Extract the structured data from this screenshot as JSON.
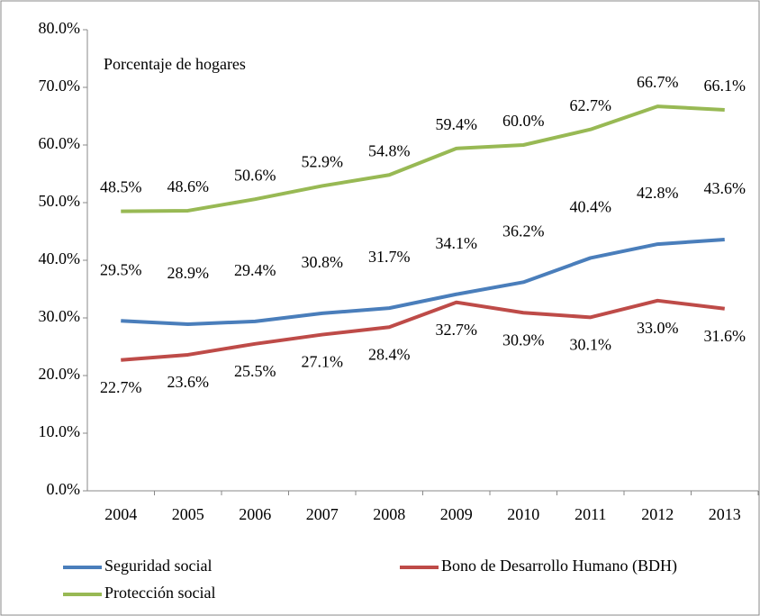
{
  "chart_data": {
    "type": "line",
    "annotations": [
      "Porcentaje de hogares"
    ],
    "categories": [
      "2004",
      "2005",
      "2006",
      "2007",
      "2008",
      "2009",
      "2010",
      "2011",
      "2012",
      "2013"
    ],
    "series": [
      {
        "name": "Seguridad social",
        "color": "#4a7ebb",
        "values": [
          29.5,
          28.9,
          29.4,
          30.8,
          31.7,
          34.1,
          36.2,
          40.4,
          42.8,
          43.6
        ],
        "value_labels": [
          "29.5%",
          "28.9%",
          "29.4%",
          "30.8%",
          "31.7%",
          "34.1%",
          "36.2%",
          "40.4%",
          "42.8%",
          "43.6%"
        ]
      },
      {
        "name": "Bono de Desarrollo  Humano (BDH)",
        "color": "#be4b48",
        "values": [
          22.7,
          23.6,
          25.5,
          27.1,
          28.4,
          32.7,
          30.9,
          30.1,
          33.0,
          31.6
        ],
        "value_labels": [
          "22.7%",
          "23.6%",
          "25.5%",
          "27.1%",
          "28.4%",
          "32.7%",
          "30.9%",
          "30.1%",
          "33.0%",
          "31.6%"
        ]
      },
      {
        "name": "Protección social",
        "color": "#98b954",
        "values": [
          48.5,
          48.6,
          50.6,
          52.9,
          54.8,
          59.4,
          60.0,
          62.7,
          66.7,
          66.1
        ],
        "value_labels": [
          "48.5%",
          "48.6%",
          "50.6%",
          "52.9%",
          "54.8%",
          "59.4%",
          "60.0%",
          "62.7%",
          "66.7%",
          "66.1%"
        ]
      }
    ],
    "ylim": [
      0,
      80
    ],
    "yticks": [
      {
        "value": 0,
        "label": "0.0%"
      },
      {
        "value": 10,
        "label": "10.0%"
      },
      {
        "value": 20,
        "label": "20.0%"
      },
      {
        "value": 30,
        "label": "30.0%"
      },
      {
        "value": 40,
        "label": "40.0%"
      },
      {
        "value": 50,
        "label": "50.0%"
      },
      {
        "value": 60,
        "label": "60.0%"
      },
      {
        "value": 70,
        "label": "70.0%"
      },
      {
        "value": 80,
        "label": "80.0%"
      }
    ],
    "grid": false,
    "legend": "bottom"
  }
}
